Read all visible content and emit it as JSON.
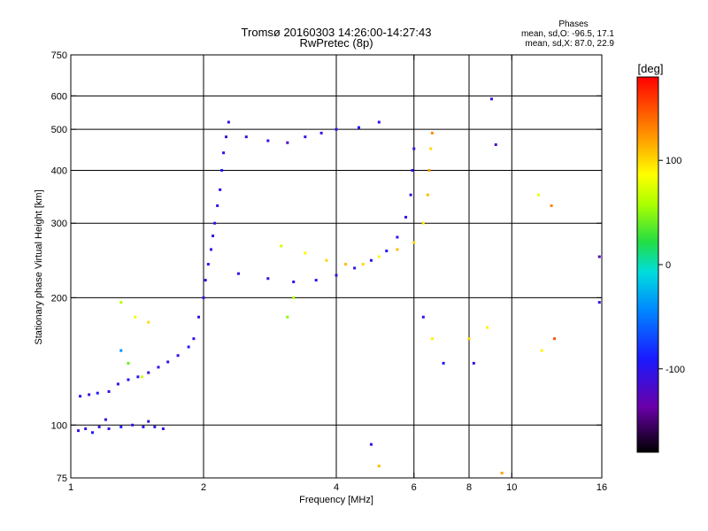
{
  "header": {
    "title_line1": "Tromsø 20160303 14:26:00-14:27:43",
    "title_line2": "RwPretec (8p)",
    "phases_title": "Phases",
    "phases_o": "mean, sd,O: -96.5, 17.1",
    "phases_x": "mean, sd,X:  87.0, 22.9"
  },
  "colorbar": {
    "label": "[deg]",
    "min": -180,
    "max": 180,
    "ticks": [
      {
        "value": 100,
        "label": "100"
      },
      {
        "value": 0,
        "label": "0"
      },
      {
        "value": -100,
        "label": "-100"
      }
    ]
  },
  "chart_data": {
    "type": "scatter",
    "xlabel": "Frequency [MHz]",
    "ylabel": "Stationary phase Virtual Height [km]",
    "xscale": "log",
    "yscale": "log",
    "xlim": [
      1,
      16
    ],
    "ylim": [
      75,
      750
    ],
    "grid": true,
    "xticks": [
      {
        "value": 1,
        "label": "1"
      },
      {
        "value": 2,
        "label": "2"
      },
      {
        "value": 4,
        "label": "4"
      },
      {
        "value": 6,
        "label": "6"
      },
      {
        "value": 8,
        "label": "8"
      },
      {
        "value": 10,
        "label": "10"
      },
      {
        "value": 16,
        "label": "16"
      }
    ],
    "xgrid": [
      2,
      4,
      6,
      8,
      10
    ],
    "yticks": [
      {
        "value": 75,
        "label": "75"
      },
      {
        "value": 100,
        "label": "100"
      },
      {
        "value": 200,
        "label": "200"
      },
      {
        "value": 300,
        "label": "300"
      },
      {
        "value": 400,
        "label": "400"
      },
      {
        "value": 500,
        "label": "500"
      },
      {
        "value": 600,
        "label": "600"
      },
      {
        "value": 750,
        "label": "750"
      }
    ],
    "ygrid": [
      100,
      200,
      300,
      400,
      500,
      600
    ],
    "series": [
      {
        "points": [
          {
            "x": 1.04,
            "y": 97,
            "p": -100
          },
          {
            "x": 1.08,
            "y": 98,
            "p": -110
          },
          {
            "x": 1.12,
            "y": 96,
            "p": -95
          },
          {
            "x": 1.16,
            "y": 99,
            "p": -105
          },
          {
            "x": 1.22,
            "y": 98,
            "p": -100
          },
          {
            "x": 1.3,
            "y": 99,
            "p": -90
          },
          {
            "x": 1.38,
            "y": 100,
            "p": -100
          },
          {
            "x": 1.46,
            "y": 99,
            "p": -105
          },
          {
            "x": 1.55,
            "y": 99,
            "p": -95
          },
          {
            "x": 1.62,
            "y": 98,
            "p": -100
          },
          {
            "x": 1.2,
            "y": 103,
            "p": -100
          },
          {
            "x": 1.5,
            "y": 102,
            "p": -110
          }
        ]
      },
      {
        "points": [
          {
            "x": 1.05,
            "y": 117,
            "p": -100
          },
          {
            "x": 1.1,
            "y": 118,
            "p": -110
          },
          {
            "x": 1.15,
            "y": 119,
            "p": -95
          },
          {
            "x": 1.22,
            "y": 120,
            "p": -100
          },
          {
            "x": 1.28,
            "y": 125,
            "p": -105
          },
          {
            "x": 1.35,
            "y": 128,
            "p": -100
          },
          {
            "x": 1.42,
            "y": 130,
            "p": -95
          },
          {
            "x": 1.5,
            "y": 133,
            "p": -110
          },
          {
            "x": 1.58,
            "y": 137,
            "p": -100
          },
          {
            "x": 1.66,
            "y": 141,
            "p": -105
          },
          {
            "x": 1.75,
            "y": 146,
            "p": -100
          },
          {
            "x": 1.85,
            "y": 153,
            "p": -95
          }
        ]
      },
      {
        "points": [
          {
            "x": 1.9,
            "y": 160,
            "p": -100
          },
          {
            "x": 1.95,
            "y": 180,
            "p": -110
          },
          {
            "x": 2.0,
            "y": 200,
            "p": -105
          },
          {
            "x": 2.02,
            "y": 220,
            "p": -100
          },
          {
            "x": 2.05,
            "y": 240,
            "p": -95
          },
          {
            "x": 2.08,
            "y": 260,
            "p": -100
          },
          {
            "x": 2.1,
            "y": 280,
            "p": -110
          },
          {
            "x": 2.12,
            "y": 300,
            "p": -100
          },
          {
            "x": 2.15,
            "y": 330,
            "p": -105
          },
          {
            "x": 2.18,
            "y": 360,
            "p": -100
          },
          {
            "x": 2.2,
            "y": 400,
            "p": -95
          },
          {
            "x": 2.22,
            "y": 440,
            "p": -100
          },
          {
            "x": 2.25,
            "y": 480,
            "p": -110
          },
          {
            "x": 2.28,
            "y": 520,
            "p": -100
          }
        ]
      },
      {
        "points": [
          {
            "x": 2.4,
            "y": 228,
            "p": -100
          },
          {
            "x": 2.8,
            "y": 222,
            "p": -110
          },
          {
            "x": 3.2,
            "y": 218,
            "p": -100
          },
          {
            "x": 3.6,
            "y": 220,
            "p": -95
          },
          {
            "x": 4.0,
            "y": 226,
            "p": -100
          },
          {
            "x": 4.4,
            "y": 235,
            "p": -105
          },
          {
            "x": 4.8,
            "y": 245,
            "p": -100
          },
          {
            "x": 5.2,
            "y": 258,
            "p": -95
          },
          {
            "x": 5.5,
            "y": 278,
            "p": -100
          },
          {
            "x": 5.75,
            "y": 310,
            "p": -100
          },
          {
            "x": 5.9,
            "y": 350,
            "p": -110
          },
          {
            "x": 5.95,
            "y": 400,
            "p": -100
          },
          {
            "x": 6.0,
            "y": 450,
            "p": -105
          }
        ]
      },
      {
        "points": [
          {
            "x": 2.5,
            "y": 480,
            "p": -110
          },
          {
            "x": 2.8,
            "y": 470,
            "p": -100
          },
          {
            "x": 3.1,
            "y": 465,
            "p": -120
          },
          {
            "x": 3.4,
            "y": 480,
            "p": -100
          },
          {
            "x": 3.7,
            "y": 490,
            "p": -110
          },
          {
            "x": 4.0,
            "y": 500,
            "p": -100
          },
          {
            "x": 4.5,
            "y": 505,
            "p": -95
          },
          {
            "x": 5.0,
            "y": 520,
            "p": -100
          }
        ]
      },
      {
        "points": [
          {
            "x": 3.0,
            "y": 265,
            "p": 70
          },
          {
            "x": 3.4,
            "y": 255,
            "p": 90
          },
          {
            "x": 3.8,
            "y": 245,
            "p": 100
          },
          {
            "x": 4.2,
            "y": 240,
            "p": 110
          },
          {
            "x": 4.6,
            "y": 240,
            "p": 100
          },
          {
            "x": 5.0,
            "y": 250,
            "p": 90
          },
          {
            "x": 5.5,
            "y": 260,
            "p": 110
          },
          {
            "x": 6.0,
            "y": 270,
            "p": 100
          },
          {
            "x": 6.3,
            "y": 300,
            "p": 95
          },
          {
            "x": 6.45,
            "y": 350,
            "p": 110
          },
          {
            "x": 6.5,
            "y": 400,
            "p": 120
          },
          {
            "x": 6.55,
            "y": 450,
            "p": 100
          },
          {
            "x": 6.6,
            "y": 490,
            "p": 130
          }
        ]
      },
      {
        "points": [
          {
            "x": 1.3,
            "y": 195,
            "p": 60
          },
          {
            "x": 1.4,
            "y": 180,
            "p": 80
          },
          {
            "x": 1.5,
            "y": 175,
            "p": 100
          },
          {
            "x": 1.35,
            "y": 140,
            "p": 40
          },
          {
            "x": 1.45,
            "y": 130,
            "p": 70
          },
          {
            "x": 3.2,
            "y": 200,
            "p": 60
          },
          {
            "x": 3.1,
            "y": 180,
            "p": 50
          },
          {
            "x": 1.3,
            "y": 150,
            "p": -40
          }
        ]
      },
      {
        "points": [
          {
            "x": 4.8,
            "y": 90,
            "p": -100
          },
          {
            "x": 5.0,
            "y": 80,
            "p": 110
          },
          {
            "x": 6.3,
            "y": 180,
            "p": -100
          },
          {
            "x": 6.6,
            "y": 160,
            "p": 90
          },
          {
            "x": 7.0,
            "y": 140,
            "p": -90
          },
          {
            "x": 8.0,
            "y": 160,
            "p": 100
          },
          {
            "x": 8.2,
            "y": 140,
            "p": -100
          },
          {
            "x": 8.8,
            "y": 170,
            "p": 90
          },
          {
            "x": 9.0,
            "y": 590,
            "p": -100
          },
          {
            "x": 9.2,
            "y": 460,
            "p": -120
          },
          {
            "x": 9.5,
            "y": 77,
            "p": 120
          },
          {
            "x": 11.5,
            "y": 350,
            "p": 80
          },
          {
            "x": 11.7,
            "y": 150,
            "p": 90
          },
          {
            "x": 12.3,
            "y": 330,
            "p": 130
          },
          {
            "x": 12.5,
            "y": 160,
            "p": 150
          },
          {
            "x": 15.8,
            "y": 250,
            "p": -130
          },
          {
            "x": 15.8,
            "y": 195,
            "p": -110
          }
        ]
      }
    ]
  }
}
